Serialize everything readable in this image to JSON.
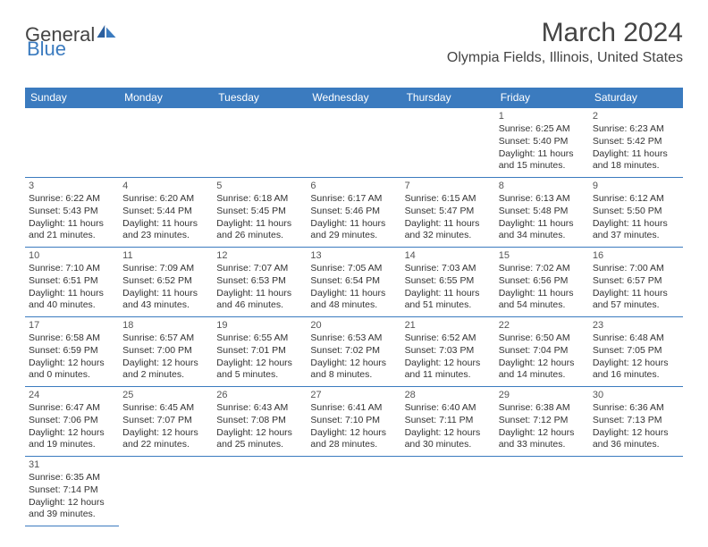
{
  "logo": {
    "general": "General",
    "blue": "Blue"
  },
  "title": "March 2024",
  "location": "Olympia Fields, Illinois, United States",
  "colors": {
    "header_bg": "#3b7bbf",
    "header_text": "#ffffff",
    "border": "#3b7bbf",
    "text": "#333333",
    "title_text": "#444444",
    "background": "#ffffff"
  },
  "day_headers": [
    "Sunday",
    "Monday",
    "Tuesday",
    "Wednesday",
    "Thursday",
    "Friday",
    "Saturday"
  ],
  "weeks": [
    [
      null,
      null,
      null,
      null,
      null,
      {
        "day": "1",
        "sunrise": "Sunrise: 6:25 AM",
        "sunset": "Sunset: 5:40 PM",
        "daylight": "Daylight: 11 hours and 15 minutes."
      },
      {
        "day": "2",
        "sunrise": "Sunrise: 6:23 AM",
        "sunset": "Sunset: 5:42 PM",
        "daylight": "Daylight: 11 hours and 18 minutes."
      }
    ],
    [
      {
        "day": "3",
        "sunrise": "Sunrise: 6:22 AM",
        "sunset": "Sunset: 5:43 PM",
        "daylight": "Daylight: 11 hours and 21 minutes."
      },
      {
        "day": "4",
        "sunrise": "Sunrise: 6:20 AM",
        "sunset": "Sunset: 5:44 PM",
        "daylight": "Daylight: 11 hours and 23 minutes."
      },
      {
        "day": "5",
        "sunrise": "Sunrise: 6:18 AM",
        "sunset": "Sunset: 5:45 PM",
        "daylight": "Daylight: 11 hours and 26 minutes."
      },
      {
        "day": "6",
        "sunrise": "Sunrise: 6:17 AM",
        "sunset": "Sunset: 5:46 PM",
        "daylight": "Daylight: 11 hours and 29 minutes."
      },
      {
        "day": "7",
        "sunrise": "Sunrise: 6:15 AM",
        "sunset": "Sunset: 5:47 PM",
        "daylight": "Daylight: 11 hours and 32 minutes."
      },
      {
        "day": "8",
        "sunrise": "Sunrise: 6:13 AM",
        "sunset": "Sunset: 5:48 PM",
        "daylight": "Daylight: 11 hours and 34 minutes."
      },
      {
        "day": "9",
        "sunrise": "Sunrise: 6:12 AM",
        "sunset": "Sunset: 5:50 PM",
        "daylight": "Daylight: 11 hours and 37 minutes."
      }
    ],
    [
      {
        "day": "10",
        "sunrise": "Sunrise: 7:10 AM",
        "sunset": "Sunset: 6:51 PM",
        "daylight": "Daylight: 11 hours and 40 minutes."
      },
      {
        "day": "11",
        "sunrise": "Sunrise: 7:09 AM",
        "sunset": "Sunset: 6:52 PM",
        "daylight": "Daylight: 11 hours and 43 minutes."
      },
      {
        "day": "12",
        "sunrise": "Sunrise: 7:07 AM",
        "sunset": "Sunset: 6:53 PM",
        "daylight": "Daylight: 11 hours and 46 minutes."
      },
      {
        "day": "13",
        "sunrise": "Sunrise: 7:05 AM",
        "sunset": "Sunset: 6:54 PM",
        "daylight": "Daylight: 11 hours and 48 minutes."
      },
      {
        "day": "14",
        "sunrise": "Sunrise: 7:03 AM",
        "sunset": "Sunset: 6:55 PM",
        "daylight": "Daylight: 11 hours and 51 minutes."
      },
      {
        "day": "15",
        "sunrise": "Sunrise: 7:02 AM",
        "sunset": "Sunset: 6:56 PM",
        "daylight": "Daylight: 11 hours and 54 minutes."
      },
      {
        "day": "16",
        "sunrise": "Sunrise: 7:00 AM",
        "sunset": "Sunset: 6:57 PM",
        "daylight": "Daylight: 11 hours and 57 minutes."
      }
    ],
    [
      {
        "day": "17",
        "sunrise": "Sunrise: 6:58 AM",
        "sunset": "Sunset: 6:59 PM",
        "daylight": "Daylight: 12 hours and 0 minutes."
      },
      {
        "day": "18",
        "sunrise": "Sunrise: 6:57 AM",
        "sunset": "Sunset: 7:00 PM",
        "daylight": "Daylight: 12 hours and 2 minutes."
      },
      {
        "day": "19",
        "sunrise": "Sunrise: 6:55 AM",
        "sunset": "Sunset: 7:01 PM",
        "daylight": "Daylight: 12 hours and 5 minutes."
      },
      {
        "day": "20",
        "sunrise": "Sunrise: 6:53 AM",
        "sunset": "Sunset: 7:02 PM",
        "daylight": "Daylight: 12 hours and 8 minutes."
      },
      {
        "day": "21",
        "sunrise": "Sunrise: 6:52 AM",
        "sunset": "Sunset: 7:03 PM",
        "daylight": "Daylight: 12 hours and 11 minutes."
      },
      {
        "day": "22",
        "sunrise": "Sunrise: 6:50 AM",
        "sunset": "Sunset: 7:04 PM",
        "daylight": "Daylight: 12 hours and 14 minutes."
      },
      {
        "day": "23",
        "sunrise": "Sunrise: 6:48 AM",
        "sunset": "Sunset: 7:05 PM",
        "daylight": "Daylight: 12 hours and 16 minutes."
      }
    ],
    [
      {
        "day": "24",
        "sunrise": "Sunrise: 6:47 AM",
        "sunset": "Sunset: 7:06 PM",
        "daylight": "Daylight: 12 hours and 19 minutes."
      },
      {
        "day": "25",
        "sunrise": "Sunrise: 6:45 AM",
        "sunset": "Sunset: 7:07 PM",
        "daylight": "Daylight: 12 hours and 22 minutes."
      },
      {
        "day": "26",
        "sunrise": "Sunrise: 6:43 AM",
        "sunset": "Sunset: 7:08 PM",
        "daylight": "Daylight: 12 hours and 25 minutes."
      },
      {
        "day": "27",
        "sunrise": "Sunrise: 6:41 AM",
        "sunset": "Sunset: 7:10 PM",
        "daylight": "Daylight: 12 hours and 28 minutes."
      },
      {
        "day": "28",
        "sunrise": "Sunrise: 6:40 AM",
        "sunset": "Sunset: 7:11 PM",
        "daylight": "Daylight: 12 hours and 30 minutes."
      },
      {
        "day": "29",
        "sunrise": "Sunrise: 6:38 AM",
        "sunset": "Sunset: 7:12 PM",
        "daylight": "Daylight: 12 hours and 33 minutes."
      },
      {
        "day": "30",
        "sunrise": "Sunrise: 6:36 AM",
        "sunset": "Sunset: 7:13 PM",
        "daylight": "Daylight: 12 hours and 36 minutes."
      }
    ],
    [
      {
        "day": "31",
        "sunrise": "Sunrise: 6:35 AM",
        "sunset": "Sunset: 7:14 PM",
        "daylight": "Daylight: 12 hours and 39 minutes."
      },
      null,
      null,
      null,
      null,
      null,
      null
    ]
  ]
}
